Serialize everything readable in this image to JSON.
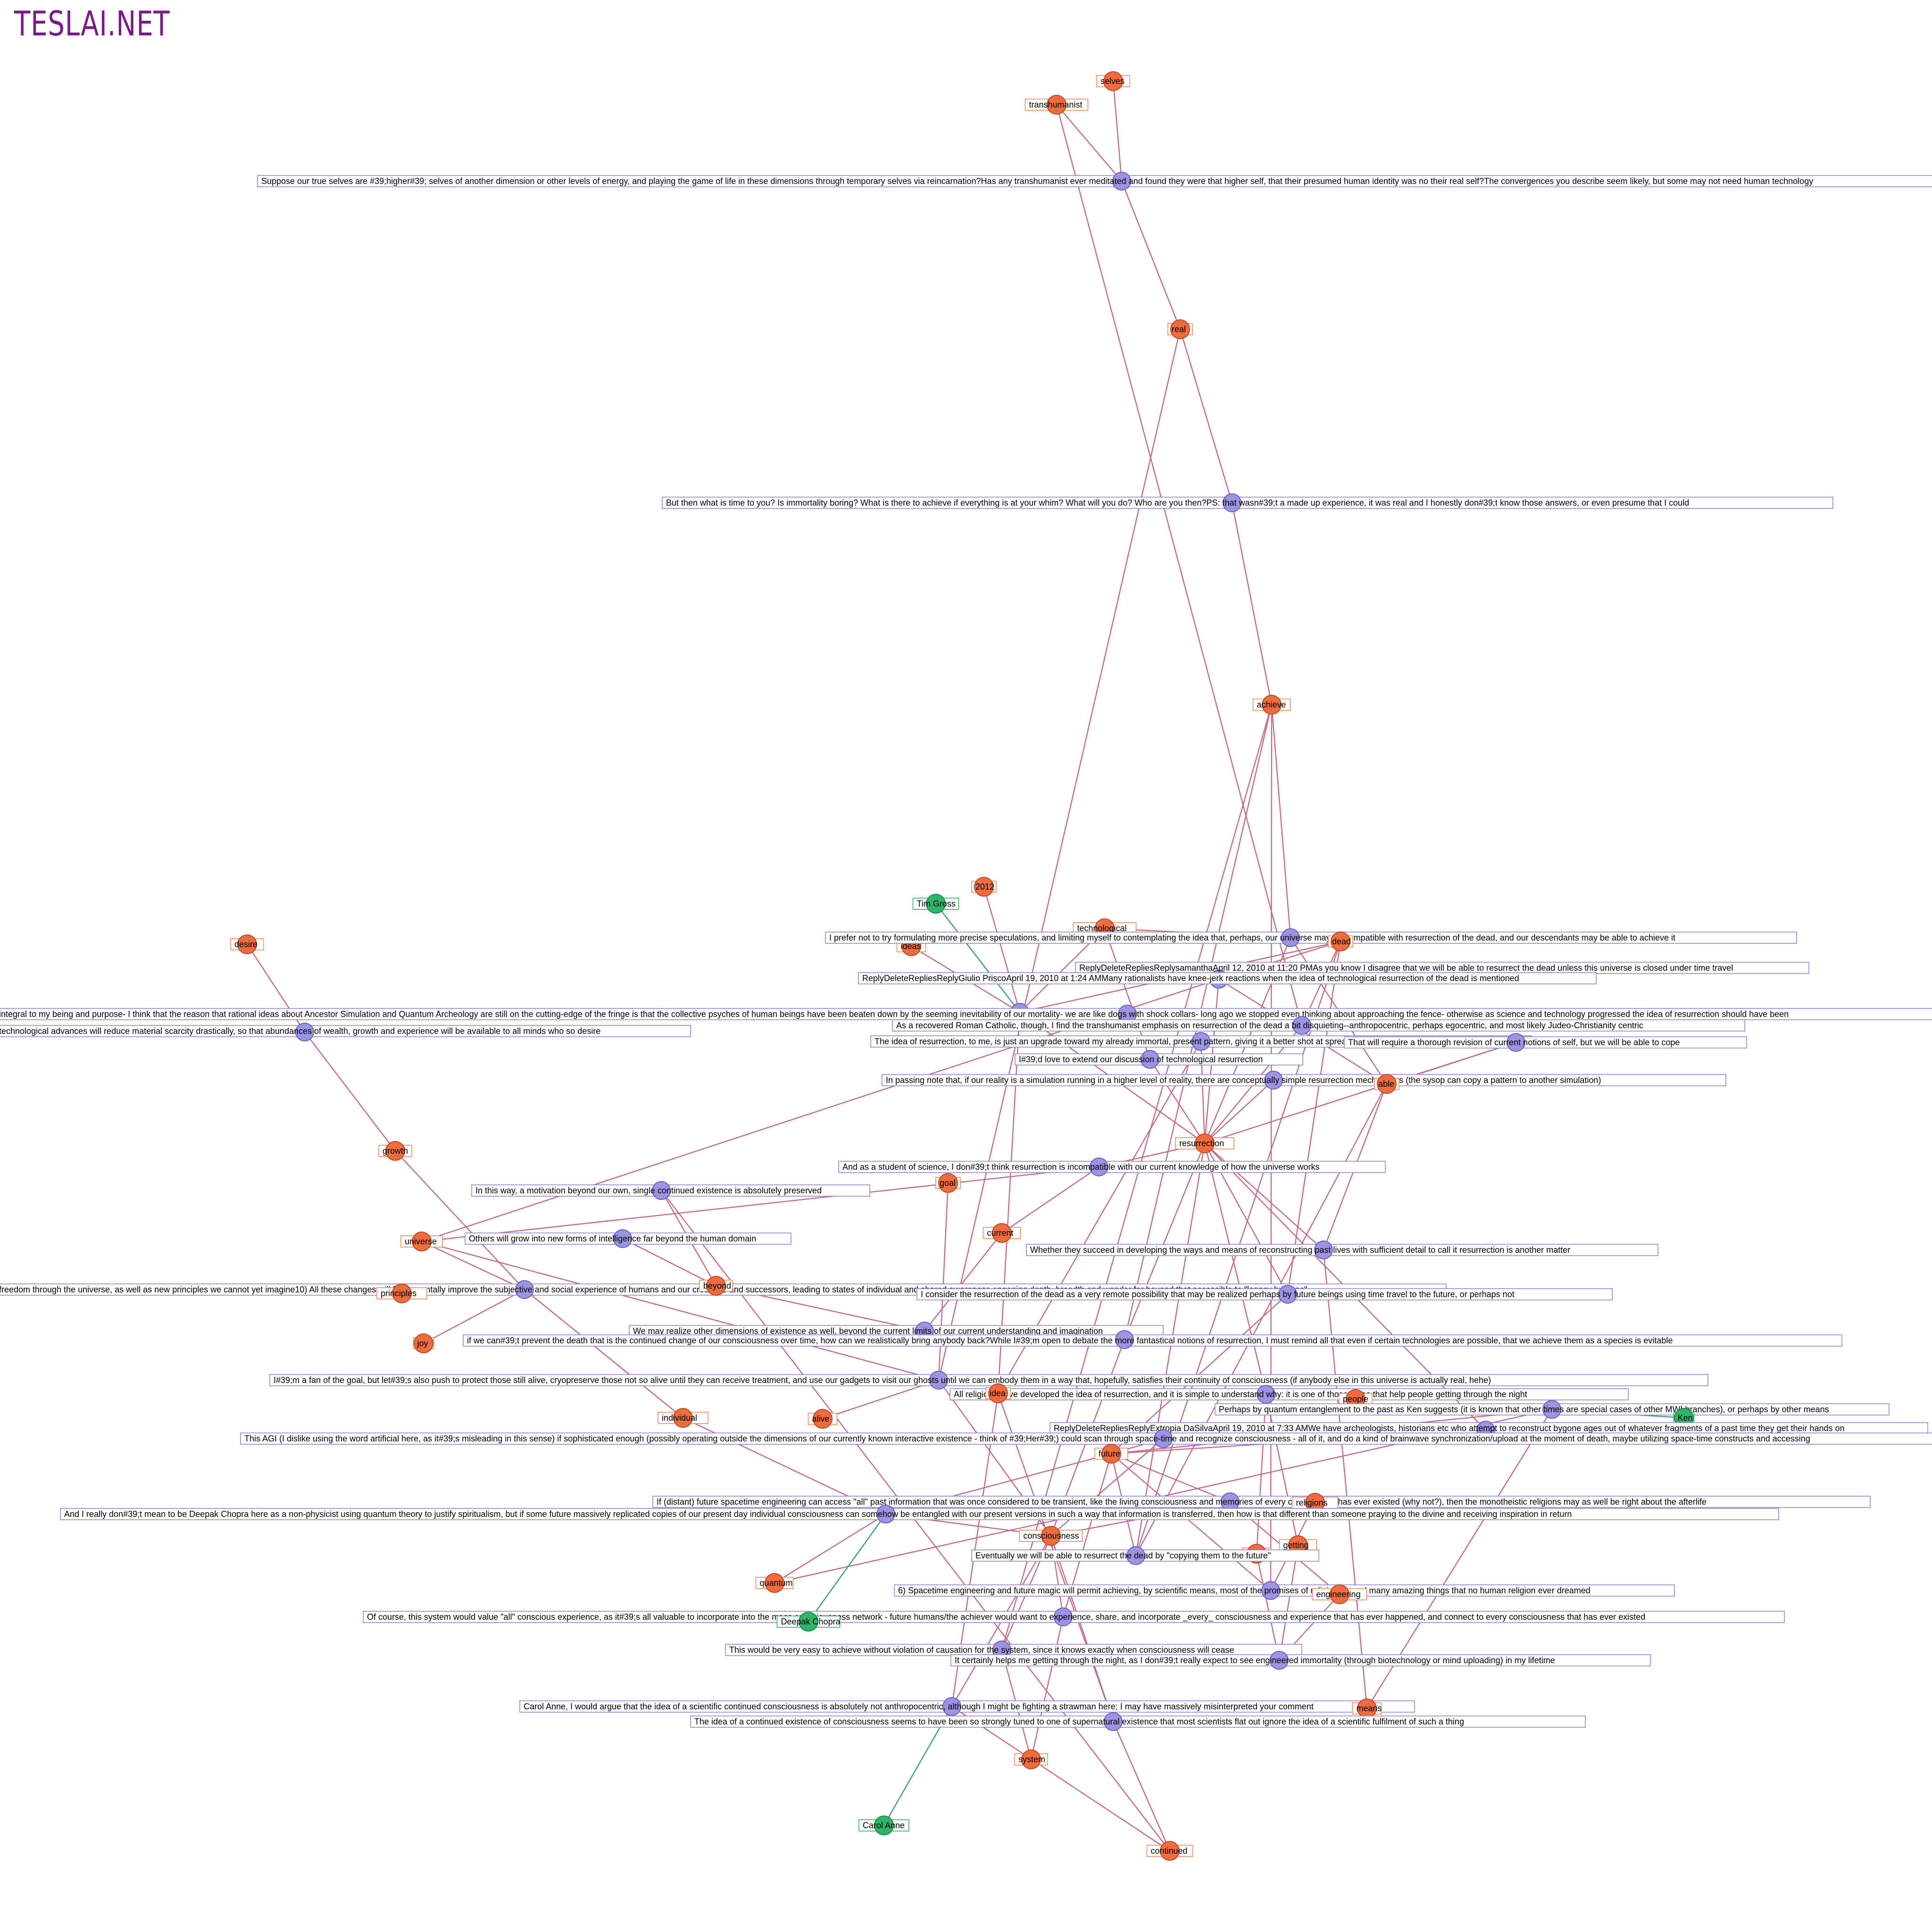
{
  "brand": "TESLAI.NET",
  "colors": {
    "comment": "#9c93e2",
    "keyword": "#ee6c40",
    "person": "#2fb56a",
    "edge": "#c46a84",
    "person_edge": "#3a9a86",
    "brand": "#7a1a8a"
  },
  "nodes": [
    {
      "id": "k_selves",
      "type": "keyword",
      "label": "selves"
    },
    {
      "id": "k_transhumanist",
      "type": "keyword",
      "label": "transhumanist"
    },
    {
      "id": "c_suppose",
      "type": "comment",
      "label": "Suppose our true selves are #39;higher#39; selves of another dimension or other levels of energy, and playing the game of life in these dimensions through temporary selves via reincarnation?Has any transhumanist ever meditated and found they were that higher self, that their presumed human identity was no their real self?The convergences you describe seem likely, but some may not need human technology"
    },
    {
      "id": "k_real",
      "type": "keyword",
      "label": "real"
    },
    {
      "id": "c_time",
      "type": "comment",
      "label": "But then what is time to you?  Is immortality boring?  What is there to achieve if everything is at your whim?  What will you do?  Who are you then?PS:  that wasn#39;t a made up experience, it was real and I honestly don#39;t know those answers, or even presume that I could"
    },
    {
      "id": "k_achieve",
      "type": "keyword",
      "label": "achieve"
    },
    {
      "id": "p_tim",
      "type": "person",
      "label": "Tim Gross"
    },
    {
      "id": "k_2012",
      "type": "keyword",
      "label": "2012"
    },
    {
      "id": "k_technological",
      "type": "keyword",
      "label": "technological"
    },
    {
      "id": "k_ideas",
      "type": "keyword",
      "label": "ideas"
    },
    {
      "id": "c_prefer",
      "type": "comment",
      "label": "I prefer not to try formulating more precise speculations, and limiting myself to contemplating the idea that, perhaps, our universe may be compatible with resurrection of the dead, and our descendants may be able to achieve it"
    },
    {
      "id": "k_dead",
      "type": "keyword",
      "label": "dead"
    },
    {
      "id": "c_samantha",
      "type": "comment",
      "label": "ReplyDeleteRepliesReplysamanthaApril 12, 2010 at 11:20 PMAs you know I disagree that we will be able to resurrect the dead unless this universe is closed under time travel"
    },
    {
      "id": "c_giulio",
      "type": "comment",
      "label": "ReplyDeleteRepliesReplyGiulio PriscoApril 19, 2010 at 1:24 AMMany rationalists have knee-jerk reactions when the idea of technological resurrection of the dead is mentioned"
    },
    {
      "id": "k_desire",
      "type": "keyword",
      "label": "desire"
    },
    {
      "id": "c_integral",
      "type": "comment",
      "label": "integral to my being and purpose- I think that the reason that rational ideas about Ancestor Simulation and Quantum Archeology are still on the cutting-edge of the fringe is that the collective psyches of human beings have been beaten down by the seeming inevitability of our mortality- we are like dogs with shock collars- long ago we stopped even thinking about approaching the fence- otherwise as science and technology progressed the idea of resurrection should have been"
    },
    {
      "id": "c_techadv",
      "type": "comment",
      "label": "technological advances will reduce material scarcity drastically, so that abundances of wealth, growth and experience will be available to all minds who so desire"
    },
    {
      "id": "c_catholic",
      "type": "comment",
      "label": "As a recovered Roman Catholic, though, I find the transhumanist emphasis on resurrection of the dead a bit disquieting--anthropocentric, perhaps egocentric, and most likely Judeo-Christianity centric"
    },
    {
      "id": "c_upgrade",
      "type": "comment",
      "label": "The idea of resurrection, to me, is just an upgrade toward my already immortal, present pattern, giving it a better shot at spreading through the universe"
    },
    {
      "id": "c_cope",
      "type": "comment",
      "label": "That will require a thorough revision of current notions of self, but we will be able to cope"
    },
    {
      "id": "c_extend",
      "type": "comment",
      "label": "I#39;d love to extend our discussion of technological resurrection"
    },
    {
      "id": "c_passing",
      "type": "comment",
      "label": "In passing note that, if our reality is a simulation running in a higher level of reality, there are conceptually simple resurrection mechanisms (the sysop can copy a pattern to another simulation)"
    },
    {
      "id": "k_able",
      "type": "keyword",
      "label": "able"
    },
    {
      "id": "k_resurrection",
      "type": "keyword",
      "label": "resurrection"
    },
    {
      "id": "k_growth",
      "type": "keyword",
      "label": "growth"
    },
    {
      "id": "c_student",
      "type": "comment",
      "label": "And as a student of science, I don#39;t think resurrection is incompatible with our current knowledge of how the universe works"
    },
    {
      "id": "k_goal",
      "type": "keyword",
      "label": "goal"
    },
    {
      "id": "c_motivation",
      "type": "comment",
      "label": "In this way, a motivation beyond our own, single continued existence is absolutely preserved"
    },
    {
      "id": "k_universe",
      "type": "keyword",
      "label": "universe"
    },
    {
      "id": "k_current",
      "type": "keyword",
      "label": "current"
    },
    {
      "id": "c_others",
      "type": "comment",
      "label": "Others will grow into new forms of intelligence far beyond the human domain"
    },
    {
      "id": "c_whether",
      "type": "comment",
      "label": "Whether they succeed in developing the ways and means of reconstructing past lives with sufficient detail to call it resurrection is another matter"
    },
    {
      "id": "c_freedom",
      "type": "comment",
      "label": "freedom through the universe, as well as new principles we cannot yet imagine10) All these changes will fundamentally improve the subjective and social experience of humans and our creations and successors, leading to states of individual and shared awareness engaging depth, breadth and wonder far beyond that accessible to \"legacy humans\""
    },
    {
      "id": "k_beyond",
      "type": "keyword",
      "label": "beyond"
    },
    {
      "id": "k_principles",
      "type": "keyword",
      "label": "principles"
    },
    {
      "id": "c_consider",
      "type": "comment",
      "label": "I consider the resurrection of the dead as a very remote possibility that may be realized perhaps by future beings using time travel to the future, or perhaps not"
    },
    {
      "id": "c_mayrealize",
      "type": "comment",
      "label": "We may realize other dimensions of existence as well, beyond the current limits of our current understanding and imagination"
    },
    {
      "id": "k_joy",
      "type": "keyword",
      "label": "joy"
    },
    {
      "id": "c_ifwecant",
      "type": "comment",
      "label": "if we can#39;t prevent the death that is the continued change of our consciousness over time, how can we realistically bring anybody back?While I#39;m open to debate the more fantastical notions of resurrection, I must remind all that even if certain technologies are possible, that we achieve them as a species is evitable"
    },
    {
      "id": "c_fan",
      "type": "comment",
      "label": "I#39;m a fan of the goal, but let#39;s also push to protect those still alive, cryopreserve those not so alive until they can receive treatment, and use our gadgets to visit our ghosts until we can embody them in a way that, hopefully, satisfies their continuity of consciousness (if anybody else in this universe is actually real, hehe)"
    },
    {
      "id": "c_religions",
      "type": "comment",
      "label": "All religions have developed the idea of resurrection, and it is simple to understand why: it is one of those ideas that help people getting through the night"
    },
    {
      "id": "k_idea",
      "type": "keyword",
      "label": "idea"
    },
    {
      "id": "k_people",
      "type": "keyword",
      "label": "people"
    },
    {
      "id": "c_quantum",
      "type": "comment",
      "label": "Perhaps by quantum entanglement to the past as Ken suggests (it is known that other times are special cases of other MWI branches), or perhaps by other means"
    },
    {
      "id": "p_ken",
      "type": "person",
      "label": "Ken"
    },
    {
      "id": "k_individual",
      "type": "keyword",
      "label": "individual"
    },
    {
      "id": "k_alive",
      "type": "keyword",
      "label": "alive"
    },
    {
      "id": "c_extropia",
      "type": "comment",
      "label": "ReplyDeleteRepliesReplyExtropia DaSilvaApril 19, 2010 at 7:33 AMWe have archeologists, historians etc who attempt to reconstruct bygone ages out of whatever fragments of a past time they get their hands on"
    },
    {
      "id": "c_agi",
      "type": "comment",
      "label": "This AGI (I dislike using the word artificial here, as it#39;s misleading in this sense) if sophisticated enough (possibly operating outside the dimensions of our currently known interactive existence - think of #39;Her#39;) could scan through space-time and recognize consciousness - all of it, and do a kind of brainwave synchronization/upload at the moment of death, maybe utilizing space-time constructs and accessing"
    },
    {
      "id": "k_future",
      "type": "keyword",
      "label": "future"
    },
    {
      "id": "c_distant",
      "type": "comment",
      "label": "If (distant) future spacetime engineering can access \"all\" past information that was once considered to be transient, like the living consciousness and memories of every creature that has ever existed (why not?), then the monotheistic religions may as well be right about the afterlife"
    },
    {
      "id": "k_religions",
      "type": "keyword",
      "label": "religions"
    },
    {
      "id": "c_chopra",
      "type": "comment",
      "label": "And I really don#39;t mean to be Deepak Chopra here as a non-physicist using quantum theory to justify spiritualism, but if some future massively replicated copies of our present day individual consciousness can somehow be entangled with our present versions in such a way that information is transferred, then how is that different than someone praying to the divine and receiving inspiration in return"
    },
    {
      "id": "k_consciousness",
      "type": "keyword",
      "label": "consciousness"
    },
    {
      "id": "k_getting",
      "type": "keyword",
      "label": "getting"
    },
    {
      "id": "k_night",
      "type": "keyword",
      "label": "night"
    },
    {
      "id": "c_eventually",
      "type": "comment",
      "label": "Eventually we will be able to resurrect the dead by \"copying them to the future\""
    },
    {
      "id": "k_quantum",
      "type": "keyword",
      "label": "quantum"
    },
    {
      "id": "c_spacetime",
      "type": "comment",
      "label": "6) Spacetime engineering and future magic will permit achieving, by scientific means, most of the promises of religions -- and many amazing things that no human religion ever dreamed"
    },
    {
      "id": "k_engineering",
      "type": "keyword",
      "label": "engineering"
    },
    {
      "id": "c_ofcourse",
      "type": "comment",
      "label": "Of course, this system would value \"all\" conscious experience, as it#39;s all valuable to incorporate into the mass consciousness network - future humans/the achiever would want to experience, share, and incorporate _every_ consciousness and experience that has ever happened, and connect to every consciousness that has ever existed"
    },
    {
      "id": "p_deepak",
      "type": "person",
      "label": "Deepak Chopra"
    },
    {
      "id": "c_easy",
      "type": "comment",
      "label": "This would be very easy to achieve without violation of causation for the system, since it knows exactly when consciousness will cease"
    },
    {
      "id": "c_helps",
      "type": "comment",
      "label": "It certainly helps me getting through the night, as I don#39;t really expect to see engineered immortality (through biotechnology or mind uploading) in my lifetime"
    },
    {
      "id": "c_carol",
      "type": "comment",
      "label": "Carol Anne, I would argue that the idea of a scientific continued consciousness is absolutely not anthropocentric, although I might be fighting a strawman here; I may have massively misinterpreted your comment"
    },
    {
      "id": "k_means",
      "type": "keyword",
      "label": "means"
    },
    {
      "id": "c_continued",
      "type": "comment",
      "label": "The idea of a continued existence of consciousness seems to have been so strongly tuned to one of supernatural existence that most scientists flat out ignore the idea of a scientific fulfilment of such a thing"
    },
    {
      "id": "k_system",
      "type": "keyword",
      "label": "system"
    },
    {
      "id": "p_carol",
      "type": "person",
      "label": "Carol Anne"
    },
    {
      "id": "k_continued",
      "type": "keyword",
      "label": "continued"
    }
  ],
  "edges": [
    [
      "c_suppose",
      "k_selves"
    ],
    [
      "c_suppose",
      "k_transhumanist"
    ],
    [
      "c_suppose",
      "k_real"
    ],
    [
      "c_time",
      "k_real"
    ],
    [
      "c_time",
      "k_achieve"
    ],
    [
      "c_prefer",
      "k_achieve"
    ],
    [
      "c_prefer",
      "k_dead"
    ],
    [
      "c_prefer",
      "k_resurrection"
    ],
    [
      "c_prefer",
      "k_able"
    ],
    [
      "c_prefer",
      "k_technological"
    ],
    [
      "c_samantha",
      "k_dead"
    ],
    [
      "c_samantha",
      "k_able"
    ],
    [
      "c_samantha",
      "k_resurrection"
    ],
    [
      "c_samantha",
      "k_universe"
    ],
    [
      "c_giulio",
      "k_technological"
    ],
    [
      "c_giulio",
      "k_ideas"
    ],
    [
      "c_giulio",
      "k_2012"
    ],
    [
      "c_giulio",
      "k_dead"
    ],
    [
      "c_giulio",
      "k_resurrection"
    ],
    [
      "c_giulio",
      "k_idea"
    ],
    [
      "c_giulio",
      "p_tim"
    ],
    [
      "c_techadv",
      "k_desire"
    ],
    [
      "c_techadv",
      "k_growth"
    ],
    [
      "c_catholic",
      "k_resurrection"
    ],
    [
      "c_catholic",
      "k_dead"
    ],
    [
      "c_catholic",
      "k_transhumanist"
    ],
    [
      "c_upgrade",
      "k_resurrection"
    ],
    [
      "c_upgrade",
      "k_idea"
    ],
    [
      "c_cope",
      "k_able"
    ],
    [
      "c_cope",
      "k_resurrection"
    ],
    [
      "c_extend",
      "k_resurrection"
    ],
    [
      "c_extend",
      "k_technological"
    ],
    [
      "c_passing",
      "k_resurrection"
    ],
    [
      "c_passing",
      "k_able"
    ],
    [
      "c_student",
      "k_resurrection"
    ],
    [
      "c_student",
      "k_current"
    ],
    [
      "c_student",
      "k_universe"
    ],
    [
      "c_motivation",
      "k_continued"
    ],
    [
      "c_motivation",
      "k_beyond"
    ],
    [
      "c_others",
      "k_beyond"
    ],
    [
      "c_freedom",
      "k_universe"
    ],
    [
      "c_freedom",
      "k_principles"
    ],
    [
      "c_freedom",
      "k_beyond"
    ],
    [
      "c_freedom",
      "k_joy"
    ],
    [
      "c_freedom",
      "k_growth"
    ],
    [
      "c_freedom",
      "k_individual"
    ],
    [
      "c_whether",
      "k_resurrection"
    ],
    [
      "c_whether",
      "k_means"
    ],
    [
      "c_whether",
      "k_able"
    ],
    [
      "c_consider",
      "k_future"
    ],
    [
      "c_consider",
      "k_resurrection"
    ],
    [
      "c_consider",
      "k_dead"
    ],
    [
      "c_mayrealize",
      "k_beyond"
    ],
    [
      "c_mayrealize",
      "k_current"
    ],
    [
      "c_ifwecant",
      "k_consciousness"
    ],
    [
      "c_ifwecant",
      "k_resurrection"
    ],
    [
      "c_ifwecant",
      "k_achieve"
    ],
    [
      "c_fan",
      "k_goal"
    ],
    [
      "c_fan",
      "k_alive"
    ],
    [
      "c_fan",
      "k_consciousness"
    ],
    [
      "c_fan",
      "k_universe"
    ],
    [
      "c_fan",
      "k_real"
    ],
    [
      "c_religions",
      "k_idea"
    ],
    [
      "c_religions",
      "k_people"
    ],
    [
      "c_religions",
      "k_getting"
    ],
    [
      "c_religions",
      "k_night"
    ],
    [
      "c_religions",
      "k_resurrection"
    ],
    [
      "c_quantum",
      "k_quantum"
    ],
    [
      "c_quantum",
      "k_means"
    ],
    [
      "c_quantum",
      "p_ken"
    ],
    [
      "c_quantum",
      "k_future"
    ],
    [
      "c_extropia",
      "k_resurrection"
    ],
    [
      "c_extropia",
      "k_future"
    ],
    [
      "c_agi",
      "k_consciousness"
    ],
    [
      "c_agi",
      "k_future"
    ],
    [
      "c_distant",
      "k_future"
    ],
    [
      "c_distant",
      "k_engineering"
    ],
    [
      "c_distant",
      "k_religions"
    ],
    [
      "c_distant",
      "k_consciousness"
    ],
    [
      "c_chopra",
      "k_consciousness"
    ],
    [
      "c_chopra",
      "k_quantum"
    ],
    [
      "c_chopra",
      "k_individual"
    ],
    [
      "c_chopra",
      "k_future"
    ],
    [
      "c_chopra",
      "p_deepak"
    ],
    [
      "c_eventually",
      "k_future"
    ],
    [
      "c_eventually",
      "k_able"
    ],
    [
      "c_eventually",
      "k_dead"
    ],
    [
      "c_eventually",
      "k_resurrection"
    ],
    [
      "c_spacetime",
      "k_future"
    ],
    [
      "c_spacetime",
      "k_religions"
    ],
    [
      "c_spacetime",
      "k_engineering"
    ],
    [
      "c_spacetime",
      "k_achieve"
    ],
    [
      "c_ofcourse",
      "k_consciousness"
    ],
    [
      "c_ofcourse",
      "k_system"
    ],
    [
      "c_ofcourse",
      "k_future"
    ],
    [
      "c_easy",
      "k_system"
    ],
    [
      "c_easy",
      "k_consciousness"
    ],
    [
      "c_easy",
      "k_achieve"
    ],
    [
      "c_helps",
      "k_getting"
    ],
    [
      "c_helps",
      "k_night"
    ],
    [
      "c_helps",
      "k_engineering"
    ],
    [
      "c_carol",
      "k_idea"
    ],
    [
      "c_carol",
      "k_continued"
    ],
    [
      "c_carol",
      "k_consciousness"
    ],
    [
      "c_carol",
      "p_carol"
    ],
    [
      "c_continued",
      "k_idea"
    ],
    [
      "c_continued",
      "k_continued"
    ],
    [
      "c_continued",
      "k_consciousness"
    ]
  ]
}
